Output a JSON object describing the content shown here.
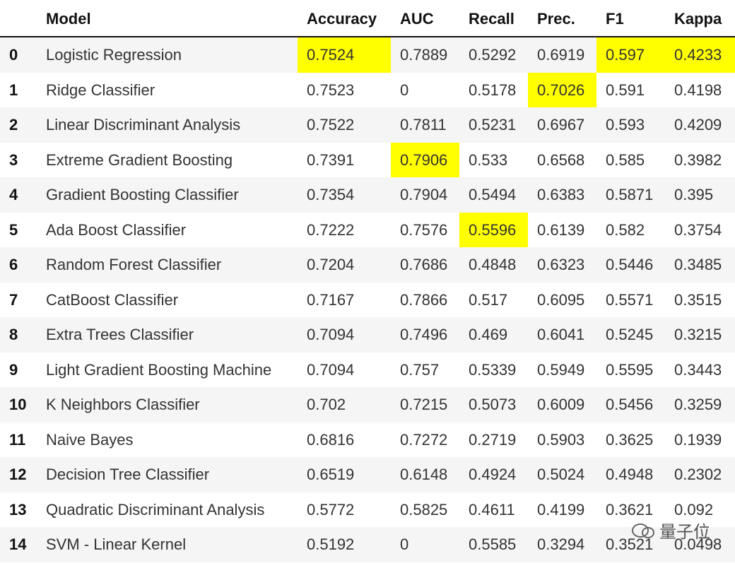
{
  "table": {
    "header": [
      "Model",
      "Accuracy",
      "AUC",
      "Recall",
      "Prec.",
      "F1",
      "Kappa"
    ],
    "rows": [
      [
        "0",
        "Logistic Regression",
        "0.7524",
        "0.7889",
        "0.5292",
        "0.6919",
        "0.597",
        "0.4233"
      ],
      [
        "1",
        "Ridge Classifier",
        "0.7523",
        "0",
        "0.5178",
        "0.7026",
        "0.591",
        "0.4198"
      ],
      [
        "2",
        "Linear Discriminant Analysis",
        "0.7522",
        "0.7811",
        "0.5231",
        "0.6967",
        "0.593",
        "0.4209"
      ],
      [
        "3",
        "Extreme Gradient Boosting",
        "0.7391",
        "0.7906",
        "0.533",
        "0.6568",
        "0.585",
        "0.3982"
      ],
      [
        "4",
        "Gradient Boosting Classifier",
        "0.7354",
        "0.7904",
        "0.5494",
        "0.6383",
        "0.5871",
        "0.395"
      ],
      [
        "5",
        "Ada Boost Classifier",
        "0.7222",
        "0.7576",
        "0.5596",
        "0.6139",
        "0.582",
        "0.3754"
      ],
      [
        "6",
        "Random Forest Classifier",
        "0.7204",
        "0.7686",
        "0.4848",
        "0.6323",
        "0.5446",
        "0.3485"
      ],
      [
        "7",
        "CatBoost Classifier",
        "0.7167",
        "0.7866",
        "0.517",
        "0.6095",
        "0.5571",
        "0.3515"
      ],
      [
        "8",
        "Extra Trees Classifier",
        "0.7094",
        "0.7496",
        "0.469",
        "0.6041",
        "0.5245",
        "0.3215"
      ],
      [
        "9",
        "Light Gradient Boosting Machine",
        "0.7094",
        "0.757",
        "0.5339",
        "0.5949",
        "0.5595",
        "0.3443"
      ],
      [
        "10",
        "K Neighbors Classifier",
        "0.702",
        "0.7215",
        "0.5073",
        "0.6009",
        "0.5456",
        "0.3259"
      ],
      [
        "11",
        "Naive Bayes",
        "0.6816",
        "0.7272",
        "0.2719",
        "0.5903",
        "0.3625",
        "0.1939"
      ],
      [
        "12",
        "Decision Tree Classifier",
        "0.6519",
        "0.6148",
        "0.4924",
        "0.5024",
        "0.4948",
        "0.2302"
      ],
      [
        "13",
        "Quadratic Discriminant Analysis",
        "0.5772",
        "0.5825",
        "0.4611",
        "0.4199",
        "0.3621",
        "0.092"
      ],
      [
        "14",
        "SVM - Linear Kernel",
        "0.5192",
        "0",
        "0.5585",
        "0.3294",
        "0.3521",
        "0.0498"
      ]
    ],
    "highlight": {
      "color": "#ffff00",
      "cells": [
        [
          0,
          2
        ],
        [
          0,
          6
        ],
        [
          0,
          7
        ],
        [
          1,
          5
        ],
        [
          3,
          3
        ],
        [
          5,
          4
        ]
      ]
    }
  },
  "watermark": "量子位"
}
